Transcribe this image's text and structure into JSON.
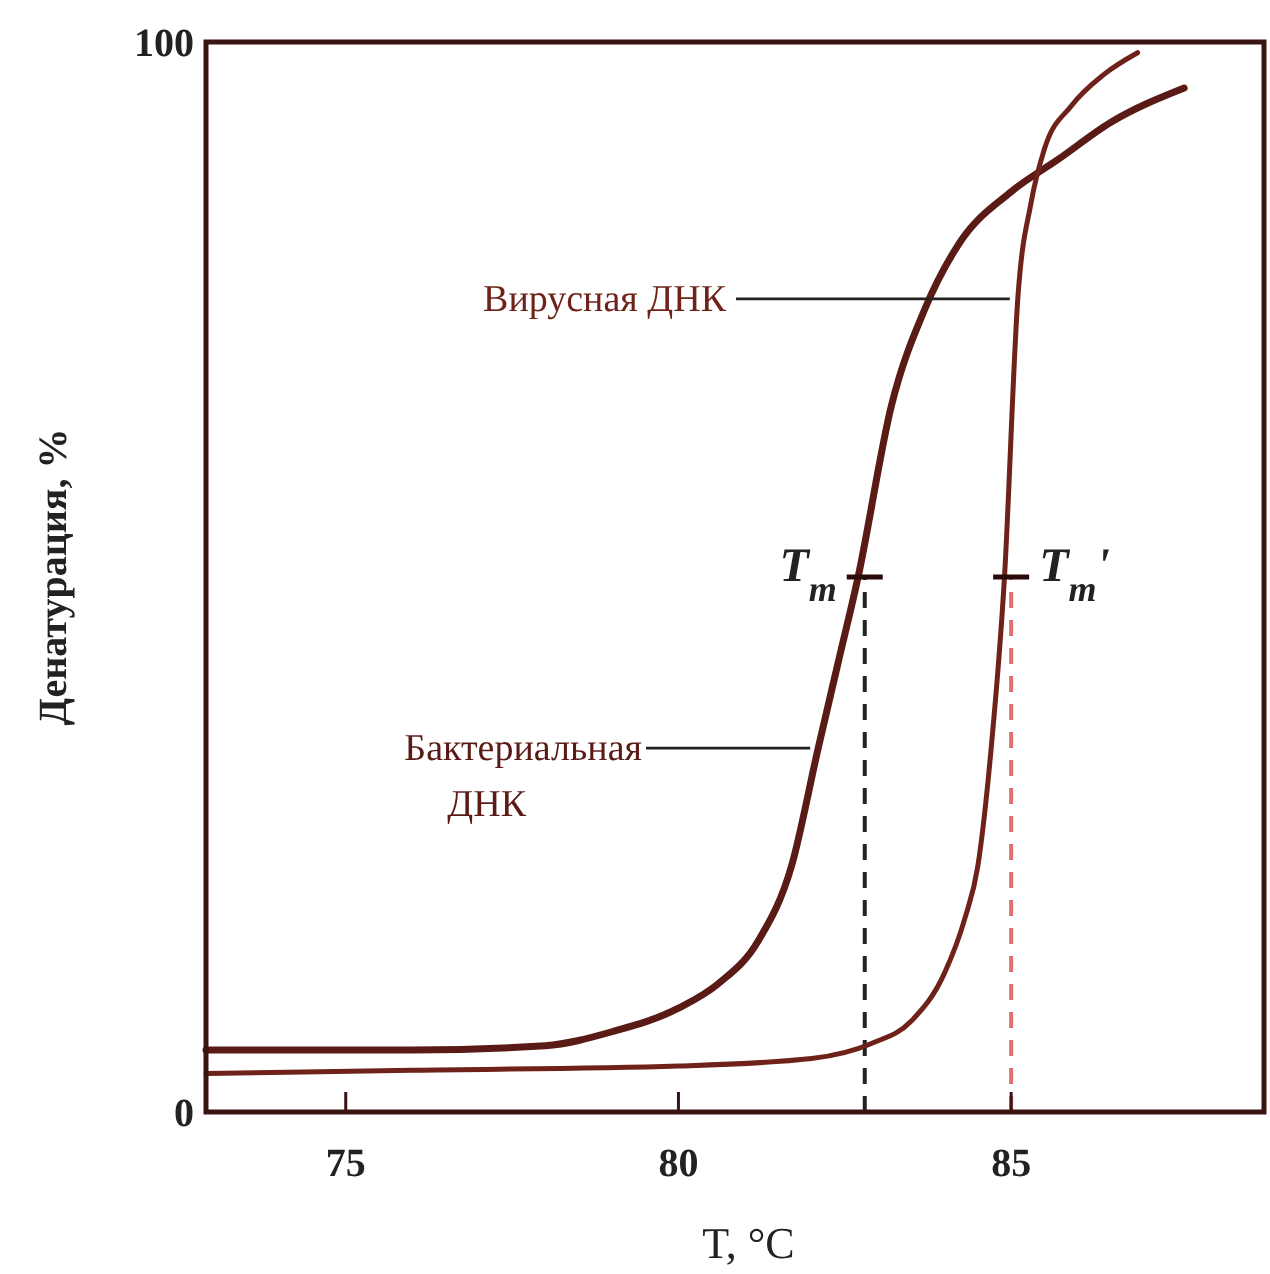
{
  "chart_data": {
    "type": "line",
    "xlabel": "T, °C",
    "ylabel": "Денатурация, %",
    "xlim": [
      72.9,
      88.8
    ],
    "ylim": [
      0,
      100
    ],
    "xticks": [
      75,
      80,
      85
    ],
    "yticks": [
      0,
      100
    ],
    "grid": false,
    "marker": "none",
    "line_style": "solid",
    "series": [
      {
        "name": "Бактериальная ДНК",
        "color": "#5a1a16",
        "x": [
          72.9,
          76,
          78,
          79,
          80,
          80.6,
          81.2,
          81.7,
          82.1,
          82.4,
          82.7,
          83.2,
          83.7,
          84.2,
          85.0,
          85.7,
          86.5,
          87.6
        ],
        "values": [
          5.8,
          5.8,
          6.2,
          7.5,
          9.7,
          12,
          16,
          23,
          34,
          42,
          50,
          66,
          75,
          81,
          86,
          89,
          92.5,
          95.7
        ]
      },
      {
        "name": "Вирусная ДНК",
        "color": "#6e2219",
        "x": [
          72.9,
          76,
          80,
          82,
          82.9,
          83.5,
          84,
          84.3,
          84.5,
          84.7,
          84.9,
          85.1,
          85.3,
          85.5,
          85.9,
          86.4,
          86.9
        ],
        "values": [
          3.6,
          3.9,
          4.3,
          5,
          6.4,
          8.5,
          13,
          18,
          23,
          34,
          50,
          76,
          85,
          90,
          94,
          97,
          99
        ]
      }
    ],
    "ref_lines": [
      {
        "axis": "x",
        "value": 82.8,
        "color": "#222222",
        "line_style": "dashed"
      },
      {
        "axis": "x",
        "value": 85.0,
        "color": "#e07070",
        "line_style": "dashed"
      }
    ],
    "annotations": [
      {
        "text": "T$_{m}$",
        "x": 82.8,
        "y": 50
      },
      {
        "text": "T$_{m}$'",
        "x": 85.0,
        "y": 50
      }
    ]
  }
}
